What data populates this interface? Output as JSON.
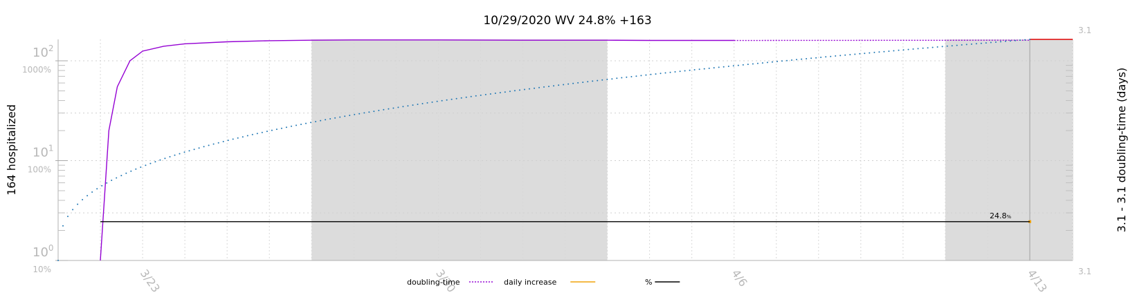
{
  "chart_data": {
    "type": "line",
    "title": "10/29/2020 WV 24.8% +163",
    "ylabel_left": "164 hospitalized",
    "ylabel_right": "3.1 - 3.1 doubling-time (days)",
    "y_scale": "log",
    "ylim": [
      1,
      164
    ],
    "y_ticks": [
      {
        "value": 1,
        "base": "10",
        "exp": "0",
        "pct": "10%"
      },
      {
        "value": 10,
        "base": "10",
        "exp": "1",
        "pct": "100%"
      },
      {
        "value": 100,
        "base": "10",
        "exp": "2",
        "pct": "1000%"
      }
    ],
    "right_ticks": {
      "top": "3.1",
      "bottom": "3.1"
    },
    "x_dates": [
      "3/21",
      "3/22",
      "3/23",
      "3/24",
      "3/25",
      "3/26",
      "3/27",
      "3/28",
      "3/29",
      "3/30",
      "3/31",
      "4/1",
      "4/2",
      "4/3",
      "4/4",
      "4/5",
      "4/6",
      "4/7",
      "4/8",
      "4/9",
      "4/10",
      "4/11",
      "4/12",
      "4/13",
      "4/14"
    ],
    "x_tick_labels": [
      "3/23",
      "3/30",
      "4/6",
      "4/13"
    ],
    "shaded_ranges": [
      [
        "3/27",
        "4/3"
      ],
      [
        "4/11",
        "4/14"
      ]
    ],
    "series": [
      {
        "name": "doubling-time",
        "color": "#9400d3",
        "style": "dotted",
        "x": [
          "3/22",
          "3/22.2",
          "3/22.4",
          "3/22.7",
          "3/23",
          "3/23.5",
          "3/24",
          "3/25",
          "3/26",
          "3/27",
          "3/28",
          "3/30",
          "4/1",
          "4/3",
          "4/4",
          "4/5",
          "4/6"
        ],
        "values": [
          1,
          20,
          55,
          100,
          125,
          140,
          148,
          155,
          159,
          161,
          162,
          162,
          161,
          161,
          160,
          160,
          160
        ]
      },
      {
        "name": "hospitalized",
        "color": "#1f77b4",
        "style": "dotted-points",
        "x_start": "3/21",
        "x_end": "4/13",
        "start_value": 1,
        "end_value": 164
      },
      {
        "name": "daily increase",
        "color": "#f0a30a",
        "style": "solid",
        "x": [
          "4/13"
        ],
        "values": [
          2.45
        ]
      },
      {
        "name": "%",
        "color": "#000000",
        "style": "solid",
        "x": [
          "3/22",
          "4/13"
        ],
        "values": [
          2.45,
          2.45
        ]
      }
    ],
    "annotations": [
      {
        "text": "24.8",
        "small": "%",
        "x": "4/13"
      }
    ],
    "legend_position": "bottom",
    "legend": [
      {
        "label": "doubling-time",
        "color": "#9400d3",
        "style": "dotted"
      },
      {
        "label": "daily increase",
        "color": "#f0a30a",
        "style": "solid"
      },
      {
        "label": "%",
        "color": "#000000",
        "style": "solid"
      }
    ],
    "grid": true
  }
}
